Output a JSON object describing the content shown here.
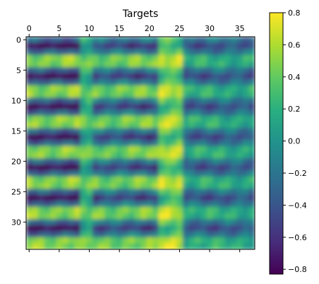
{
  "chart_data": {
    "type": "heatmap",
    "title": "Targets",
    "xlabel": "",
    "ylabel": "",
    "x_ticks": [
      0,
      5,
      10,
      15,
      20,
      25,
      30,
      35
    ],
    "y_ticks": [
      0,
      5,
      10,
      15,
      20,
      25,
      30
    ],
    "x_tick_labels": [
      "0",
      "5",
      "10",
      "15",
      "20",
      "25",
      "30",
      "35"
    ],
    "y_tick_labels": [
      "0",
      "5",
      "10",
      "15",
      "20",
      "25",
      "30"
    ],
    "x_tick_position": "top",
    "n_cols": 38,
    "n_rows": 35,
    "colormap": "viridis",
    "interpolation": "smooth",
    "value_range": [
      -0.83,
      0.8
    ],
    "colorbar": {
      "ticks": [
        0.8,
        0.6,
        0.4,
        0.2,
        0.0,
        -0.2,
        -0.4,
        -0.6,
        -0.8
      ],
      "tick_labels": [
        "0.8",
        "0.6",
        "0.4",
        "0.2",
        "0.0",
        "−0.2",
        "−0.4",
        "−0.6",
        "−0.8"
      ]
    },
    "pattern": {
      "description_values": "rows alternate between high and low bands with a period of about 5 rows; column groups differ in amplitude",
      "column_bands": [
        {
          "cols": [
            0,
            8
          ],
          "amplitude": 0.75,
          "mean": -0.1
        },
        {
          "cols": [
            9,
            10
          ],
          "amplitude": 0.15,
          "mean": 0.25
        },
        {
          "cols": [
            11,
            21
          ],
          "amplitude": 0.55,
          "mean": 0.0
        },
        {
          "cols": [
            22,
            25
          ],
          "amplitude": 0.3,
          "mean": 0.45
        },
        {
          "cols": [
            26,
            37
          ],
          "amplitude": 0.35,
          "mean": -0.1
        }
      ],
      "row_period": 5
    }
  }
}
